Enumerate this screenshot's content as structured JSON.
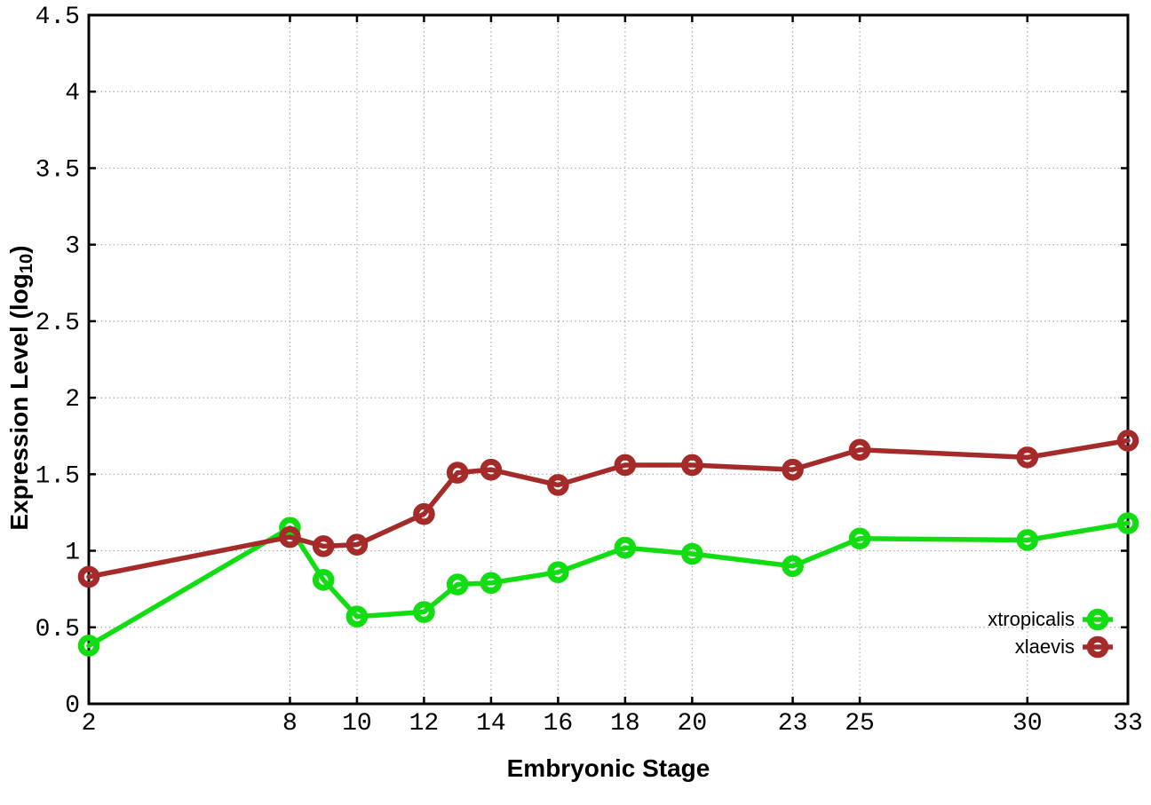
{
  "figure": {
    "background": "#ffffff",
    "axis_color": "#000000",
    "grid_color": "#9a9a9a",
    "tick_label_color": "#000000"
  },
  "chart_data": {
    "type": "line",
    "title": "",
    "xlabel": "Embryonic Stage",
    "ylabel": "Expression Level (log10)",
    "ylabel_prefix": "Expression Level (log",
    "ylabel_sub": "10",
    "ylabel_suffix": ")",
    "x": [
      2,
      8,
      9,
      10,
      12,
      13,
      14,
      16,
      18,
      20,
      23,
      25,
      30,
      33
    ],
    "xlim": [
      2,
      33
    ],
    "ylim": [
      0,
      4.5
    ],
    "x_ticks": [
      2,
      8,
      10,
      12,
      14,
      16,
      18,
      20,
      23,
      25,
      30,
      33
    ],
    "x_tick_labels": [
      "2",
      "8",
      "10",
      "12",
      "14",
      "16",
      "18",
      "20",
      "23",
      "25",
      "30",
      "33"
    ],
    "y_ticks": [
      0,
      0.5,
      1,
      1.5,
      2,
      2.5,
      3,
      3.5,
      4,
      4.5
    ],
    "y_tick_labels": [
      "0",
      "0.5",
      "1",
      "1.5",
      "2",
      "2.5",
      "3",
      "3.5",
      "4",
      "4.5"
    ],
    "grid": true,
    "grid_style": "dotted",
    "legend_position": "bottom-right-inside",
    "series": [
      {
        "name": "xtropicalis",
        "color": "#12dd12",
        "values": [
          0.38,
          1.15,
          0.81,
          0.57,
          0.6,
          0.78,
          0.79,
          0.86,
          1.02,
          0.98,
          0.9,
          1.08,
          1.07,
          1.18
        ]
      },
      {
        "name": "xlaevis",
        "color": "#a52a2a",
        "values": [
          0.83,
          1.09,
          1.03,
          1.04,
          1.24,
          1.51,
          1.53,
          1.43,
          1.56,
          1.56,
          1.53,
          1.66,
          1.61,
          1.72
        ]
      }
    ]
  }
}
